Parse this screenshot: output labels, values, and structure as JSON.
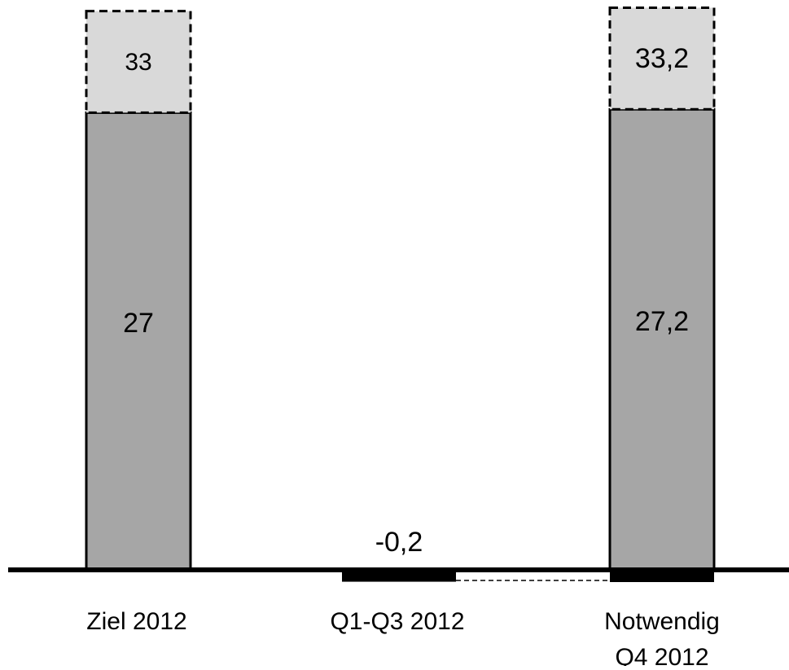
{
  "chart_data": {
    "type": "bar",
    "categories": [
      "Ziel 2012",
      "Q1-Q3 2012",
      "Notwendig Q4 2012"
    ],
    "category_label_lines": [
      [
        "Ziel 2012"
      ],
      [
        "Q1-Q3 2012"
      ],
      [
        "Notwendig",
        "Q4 2012"
      ]
    ],
    "series": [
      {
        "values": [
          27,
          -0.2,
          27.2
        ],
        "labels": [
          "27",
          "-0,2",
          "27,2"
        ],
        "style": "solid"
      },
      {
        "values": [
          33,
          null,
          33.2
        ],
        "labels": [
          "33",
          "",
          "33,2"
        ],
        "style": "dashed",
        "stacked_on": 0
      }
    ],
    "connector": {
      "from_category": 1,
      "to_category": 2,
      "at_value": -0.2,
      "style": "dashed"
    },
    "title": "",
    "xlabel": "",
    "ylabel": "",
    "ylim": [
      -1.5,
      63
    ],
    "axis": {
      "show_y_axis": false,
      "grid": false
    },
    "colors": {
      "primary_bar": "#a6a6a6",
      "secondary_bar": "#d9d9d9",
      "negative_bar": "#000000",
      "outline": "#000000",
      "baseline": "#000000"
    }
  }
}
